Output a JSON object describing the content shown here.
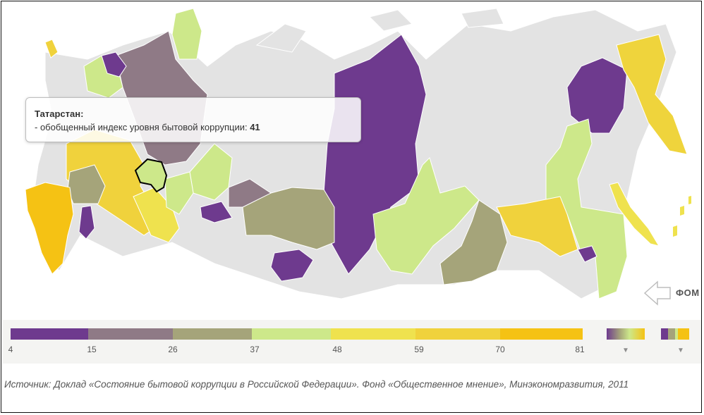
{
  "tooltip": {
    "region": "Татарстан:",
    "line": "- обобщенный индекс уровня бытовой коррупции: ",
    "value": "41"
  },
  "logo": {
    "label": "ФОМ"
  },
  "legend": {
    "ticks": [
      "4",
      "15",
      "26",
      "37",
      "48",
      "59",
      "70",
      "81"
    ],
    "colors": [
      "#6e3a8e",
      "#8f7a86",
      "#a5a47a",
      "#cde88a",
      "#efe24e",
      "#f0d23c",
      "#f5c214"
    ],
    "toggle_a": "▼",
    "toggle_b": "▼"
  },
  "source": {
    "text": "Источник: Доклад «Состояние бытовой коррупции в Российской Федерации». Фонд «Общественное мнение», Минэкономразвития, 2011"
  },
  "palette": {
    "no_data": "#e3e3e3",
    "outline": "#ffffff",
    "highlight": "#000000"
  }
}
